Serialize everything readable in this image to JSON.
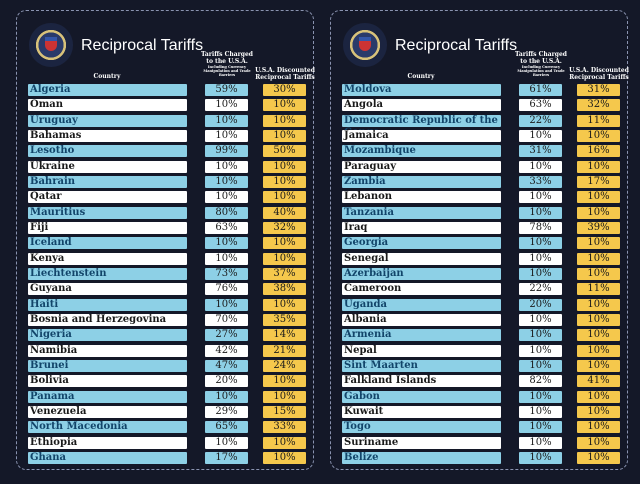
{
  "title": "Reciprocal Tariffs",
  "headers": {
    "country": "Country",
    "tariff": "Tariffs Charged to the U.S.A.",
    "tariff_sub": "Including Currency Manipulation and Trade Barriers",
    "discounted": "U.S.A. Discounted Reciprocal Tariffs"
  },
  "colors": {
    "background": "#141828",
    "row_blue": "#8dd0e6",
    "row_white": "#ffffff",
    "discounted": "#f5c84c"
  },
  "seal_icon": "presidential-seal",
  "panels": [
    {
      "rows": [
        {
          "country": "Algeria",
          "tariff": "59%",
          "discounted": "30%"
        },
        {
          "country": "Oman",
          "tariff": "10%",
          "discounted": "10%"
        },
        {
          "country": "Uruguay",
          "tariff": "10%",
          "discounted": "10%"
        },
        {
          "country": "Bahamas",
          "tariff": "10%",
          "discounted": "10%"
        },
        {
          "country": "Lesotho",
          "tariff": "99%",
          "discounted": "50%"
        },
        {
          "country": "Ukraine",
          "tariff": "10%",
          "discounted": "10%"
        },
        {
          "country": "Bahrain",
          "tariff": "10%",
          "discounted": "10%"
        },
        {
          "country": "Qatar",
          "tariff": "10%",
          "discounted": "10%"
        },
        {
          "country": "Mauritius",
          "tariff": "80%",
          "discounted": "40%"
        },
        {
          "country": "Fiji",
          "tariff": "63%",
          "discounted": "32%"
        },
        {
          "country": "Iceland",
          "tariff": "10%",
          "discounted": "10%"
        },
        {
          "country": "Kenya",
          "tariff": "10%",
          "discounted": "10%"
        },
        {
          "country": "Liechtenstein",
          "tariff": "73%",
          "discounted": "37%"
        },
        {
          "country": "Guyana",
          "tariff": "76%",
          "discounted": "38%"
        },
        {
          "country": "Haiti",
          "tariff": "10%",
          "discounted": "10%"
        },
        {
          "country": "Bosnia and Herzegovina",
          "tariff": "70%",
          "discounted": "35%"
        },
        {
          "country": "Nigeria",
          "tariff": "27%",
          "discounted": "14%"
        },
        {
          "country": "Namibia",
          "tariff": "42%",
          "discounted": "21%"
        },
        {
          "country": "Brunei",
          "tariff": "47%",
          "discounted": "24%"
        },
        {
          "country": "Bolivia",
          "tariff": "20%",
          "discounted": "10%"
        },
        {
          "country": "Panama",
          "tariff": "10%",
          "discounted": "10%"
        },
        {
          "country": "Venezuela",
          "tariff": "29%",
          "discounted": "15%"
        },
        {
          "country": "North Macedonia",
          "tariff": "65%",
          "discounted": "33%"
        },
        {
          "country": "Ethiopia",
          "tariff": "10%",
          "discounted": "10%"
        },
        {
          "country": "Ghana",
          "tariff": "17%",
          "discounted": "10%"
        }
      ]
    },
    {
      "rows": [
        {
          "country": "Moldova",
          "tariff": "61%",
          "discounted": "31%"
        },
        {
          "country": "Angola",
          "tariff": "63%",
          "discounted": "32%"
        },
        {
          "country": "Democratic Republic of the Congo",
          "tariff": "22%",
          "discounted": "11%"
        },
        {
          "country": "Jamaica",
          "tariff": "10%",
          "discounted": "10%"
        },
        {
          "country": "Mozambique",
          "tariff": "31%",
          "discounted": "16%"
        },
        {
          "country": "Paraguay",
          "tariff": "10%",
          "discounted": "10%"
        },
        {
          "country": "Zambia",
          "tariff": "33%",
          "discounted": "17%"
        },
        {
          "country": "Lebanon",
          "tariff": "10%",
          "discounted": "10%"
        },
        {
          "country": "Tanzania",
          "tariff": "10%",
          "discounted": "10%"
        },
        {
          "country": "Iraq",
          "tariff": "78%",
          "discounted": "39%"
        },
        {
          "country": "Georgia",
          "tariff": "10%",
          "discounted": "10%"
        },
        {
          "country": "Senegal",
          "tariff": "10%",
          "discounted": "10%"
        },
        {
          "country": "Azerbaijan",
          "tariff": "10%",
          "discounted": "10%"
        },
        {
          "country": "Cameroon",
          "tariff": "22%",
          "discounted": "11%"
        },
        {
          "country": "Uganda",
          "tariff": "20%",
          "discounted": "10%"
        },
        {
          "country": "Albania",
          "tariff": "10%",
          "discounted": "10%"
        },
        {
          "country": "Armenia",
          "tariff": "10%",
          "discounted": "10%"
        },
        {
          "country": "Nepal",
          "tariff": "10%",
          "discounted": "10%"
        },
        {
          "country": "Sint Maarten",
          "tariff": "10%",
          "discounted": "10%"
        },
        {
          "country": "Falkland Islands",
          "tariff": "82%",
          "discounted": "41%"
        },
        {
          "country": "Gabon",
          "tariff": "10%",
          "discounted": "10%"
        },
        {
          "country": "Kuwait",
          "tariff": "10%",
          "discounted": "10%"
        },
        {
          "country": "Togo",
          "tariff": "10%",
          "discounted": "10%"
        },
        {
          "country": "Suriname",
          "tariff": "10%",
          "discounted": "10%"
        },
        {
          "country": "Belize",
          "tariff": "10%",
          "discounted": "10%"
        }
      ]
    }
  ]
}
